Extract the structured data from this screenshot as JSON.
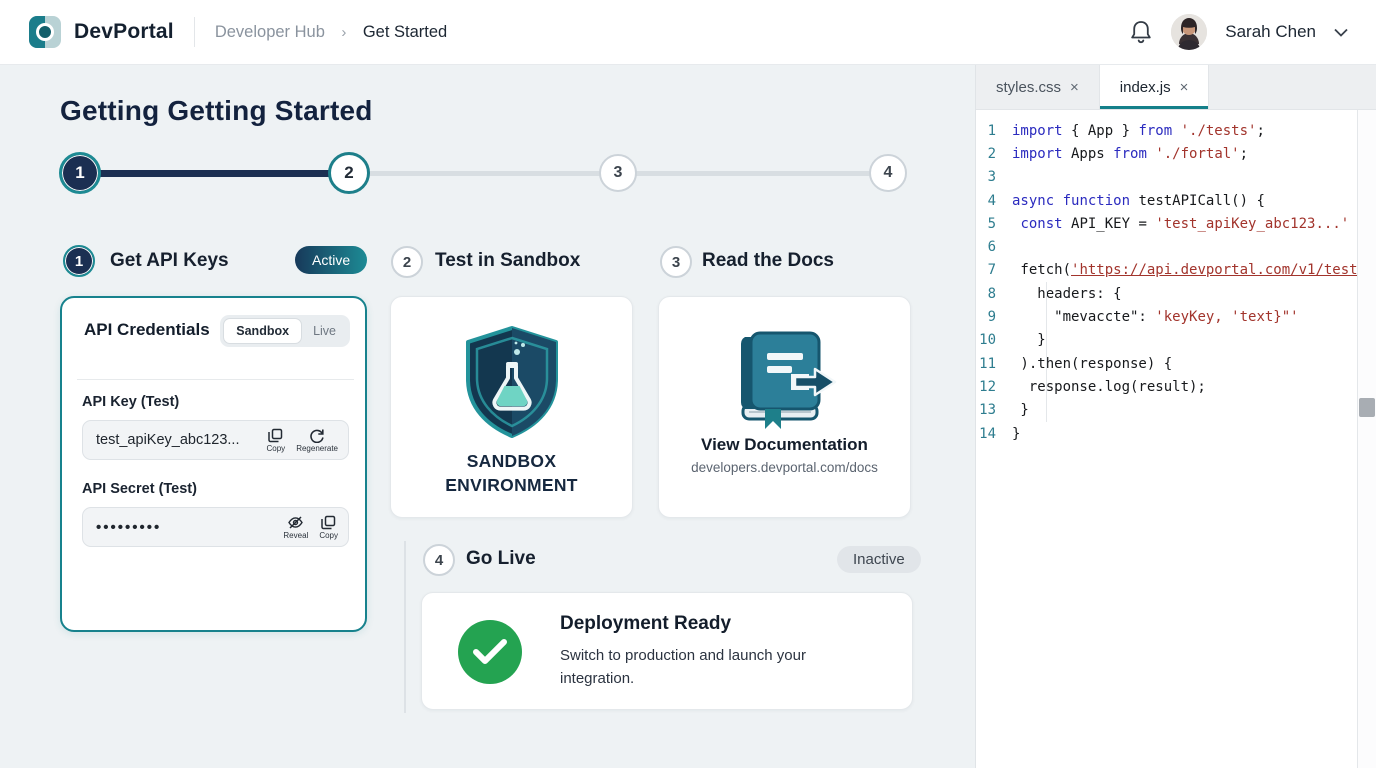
{
  "header": {
    "brand": "DevPortal",
    "breadcrumb": {
      "section": "Developer Hub",
      "separator": "›",
      "current": "Get Started"
    },
    "user": {
      "name": "Sarah Chen"
    }
  },
  "page": {
    "title": "Getting Getting Started",
    "steps": [
      {
        "num": "1",
        "label": "Get API Keys",
        "badge": "Active",
        "state": "active"
      },
      {
        "num": "2",
        "label": "Test in Sandbox",
        "state": "next"
      },
      {
        "num": "3",
        "label": "Read the Docs",
        "state": "idle"
      },
      {
        "num": "4",
        "label": "Go Live",
        "badge": "Inactive",
        "state": "idle"
      }
    ]
  },
  "credentials": {
    "title": "API Credentials",
    "env_toggle": {
      "options": [
        "Sandbox",
        "Live"
      ],
      "selected": "Sandbox"
    },
    "api_key": {
      "label": "API Key (Test)",
      "value": "test_apiKey_abc123...",
      "actions": [
        "Copy",
        "Regenerate"
      ]
    },
    "api_secret": {
      "label": "API Secret (Test)",
      "value": "•••••••••",
      "actions": [
        "Reveal",
        "Copy"
      ]
    }
  },
  "sandbox_card": {
    "line1": "SANDBOX",
    "line2": "ENVIRONMENT"
  },
  "docs_card": {
    "title": "View Documentation",
    "url": "developers.devportal.com/docs"
  },
  "golive_card": {
    "title": "Deployment Ready",
    "description": "Switch to production and launch your integration."
  },
  "editor": {
    "tabs": [
      {
        "label": "styles.css",
        "close": "×",
        "active": false
      },
      {
        "label": "index.js",
        "close": "×",
        "active": true
      }
    ],
    "lines": [
      [
        {
          "c": "k",
          "t": "import"
        },
        {
          "c": "p",
          "t": " { App } "
        },
        {
          "c": "k",
          "t": "from"
        },
        {
          "c": "p",
          "t": " "
        },
        {
          "c": "s",
          "t": "'./tests'"
        },
        {
          "c": "p",
          "t": ";"
        }
      ],
      [
        {
          "c": "k",
          "t": "import"
        },
        {
          "c": "p",
          "t": " Apps "
        },
        {
          "c": "k",
          "t": "from"
        },
        {
          "c": "p",
          "t": " "
        },
        {
          "c": "s",
          "t": "'./fortal'"
        },
        {
          "c": "p",
          "t": ";"
        }
      ],
      [],
      [
        {
          "c": "k",
          "t": "async"
        },
        {
          "c": "p",
          "t": " "
        },
        {
          "c": "k",
          "t": "function"
        },
        {
          "c": "p",
          "t": " testAPICall() {"
        }
      ],
      [
        {
          "c": "p",
          "t": " "
        },
        {
          "c": "k",
          "t": "const"
        },
        {
          "c": "p",
          "t": " API_KEY = "
        },
        {
          "c": "s",
          "t": "'test_apiKey_abc123...'"
        }
      ],
      [],
      [
        {
          "c": "p",
          "t": " fetch("
        },
        {
          "c": "u",
          "t": "'https://api.devportal.com/v1/test'"
        }
      ],
      [
        {
          "c": "p",
          "t": "   headers: {"
        }
      ],
      [
        {
          "c": "p",
          "t": "     \"mevaccte\": "
        },
        {
          "c": "s",
          "t": "'keyKey, 'text}\"'"
        }
      ],
      [
        {
          "c": "p",
          "t": "   }"
        }
      ],
      [
        {
          "c": "p",
          "t": " ).then(response) {"
        }
      ],
      [
        {
          "c": "p",
          "t": "  response.log(result);"
        }
      ],
      [
        {
          "c": "p",
          "t": " }"
        }
      ],
      [
        {
          "c": "p",
          "t": "}"
        }
      ]
    ]
  },
  "colors": {
    "accent_teal": "#17828d",
    "navy": "#1b2f52",
    "success_green": "#24a351",
    "code_keyword": "#2b2bbf",
    "code_string": "#a2342c",
    "line_number": "#2e7d8f",
    "badge_gradient": [
      "#17395a",
      "#1d8b95"
    ]
  }
}
